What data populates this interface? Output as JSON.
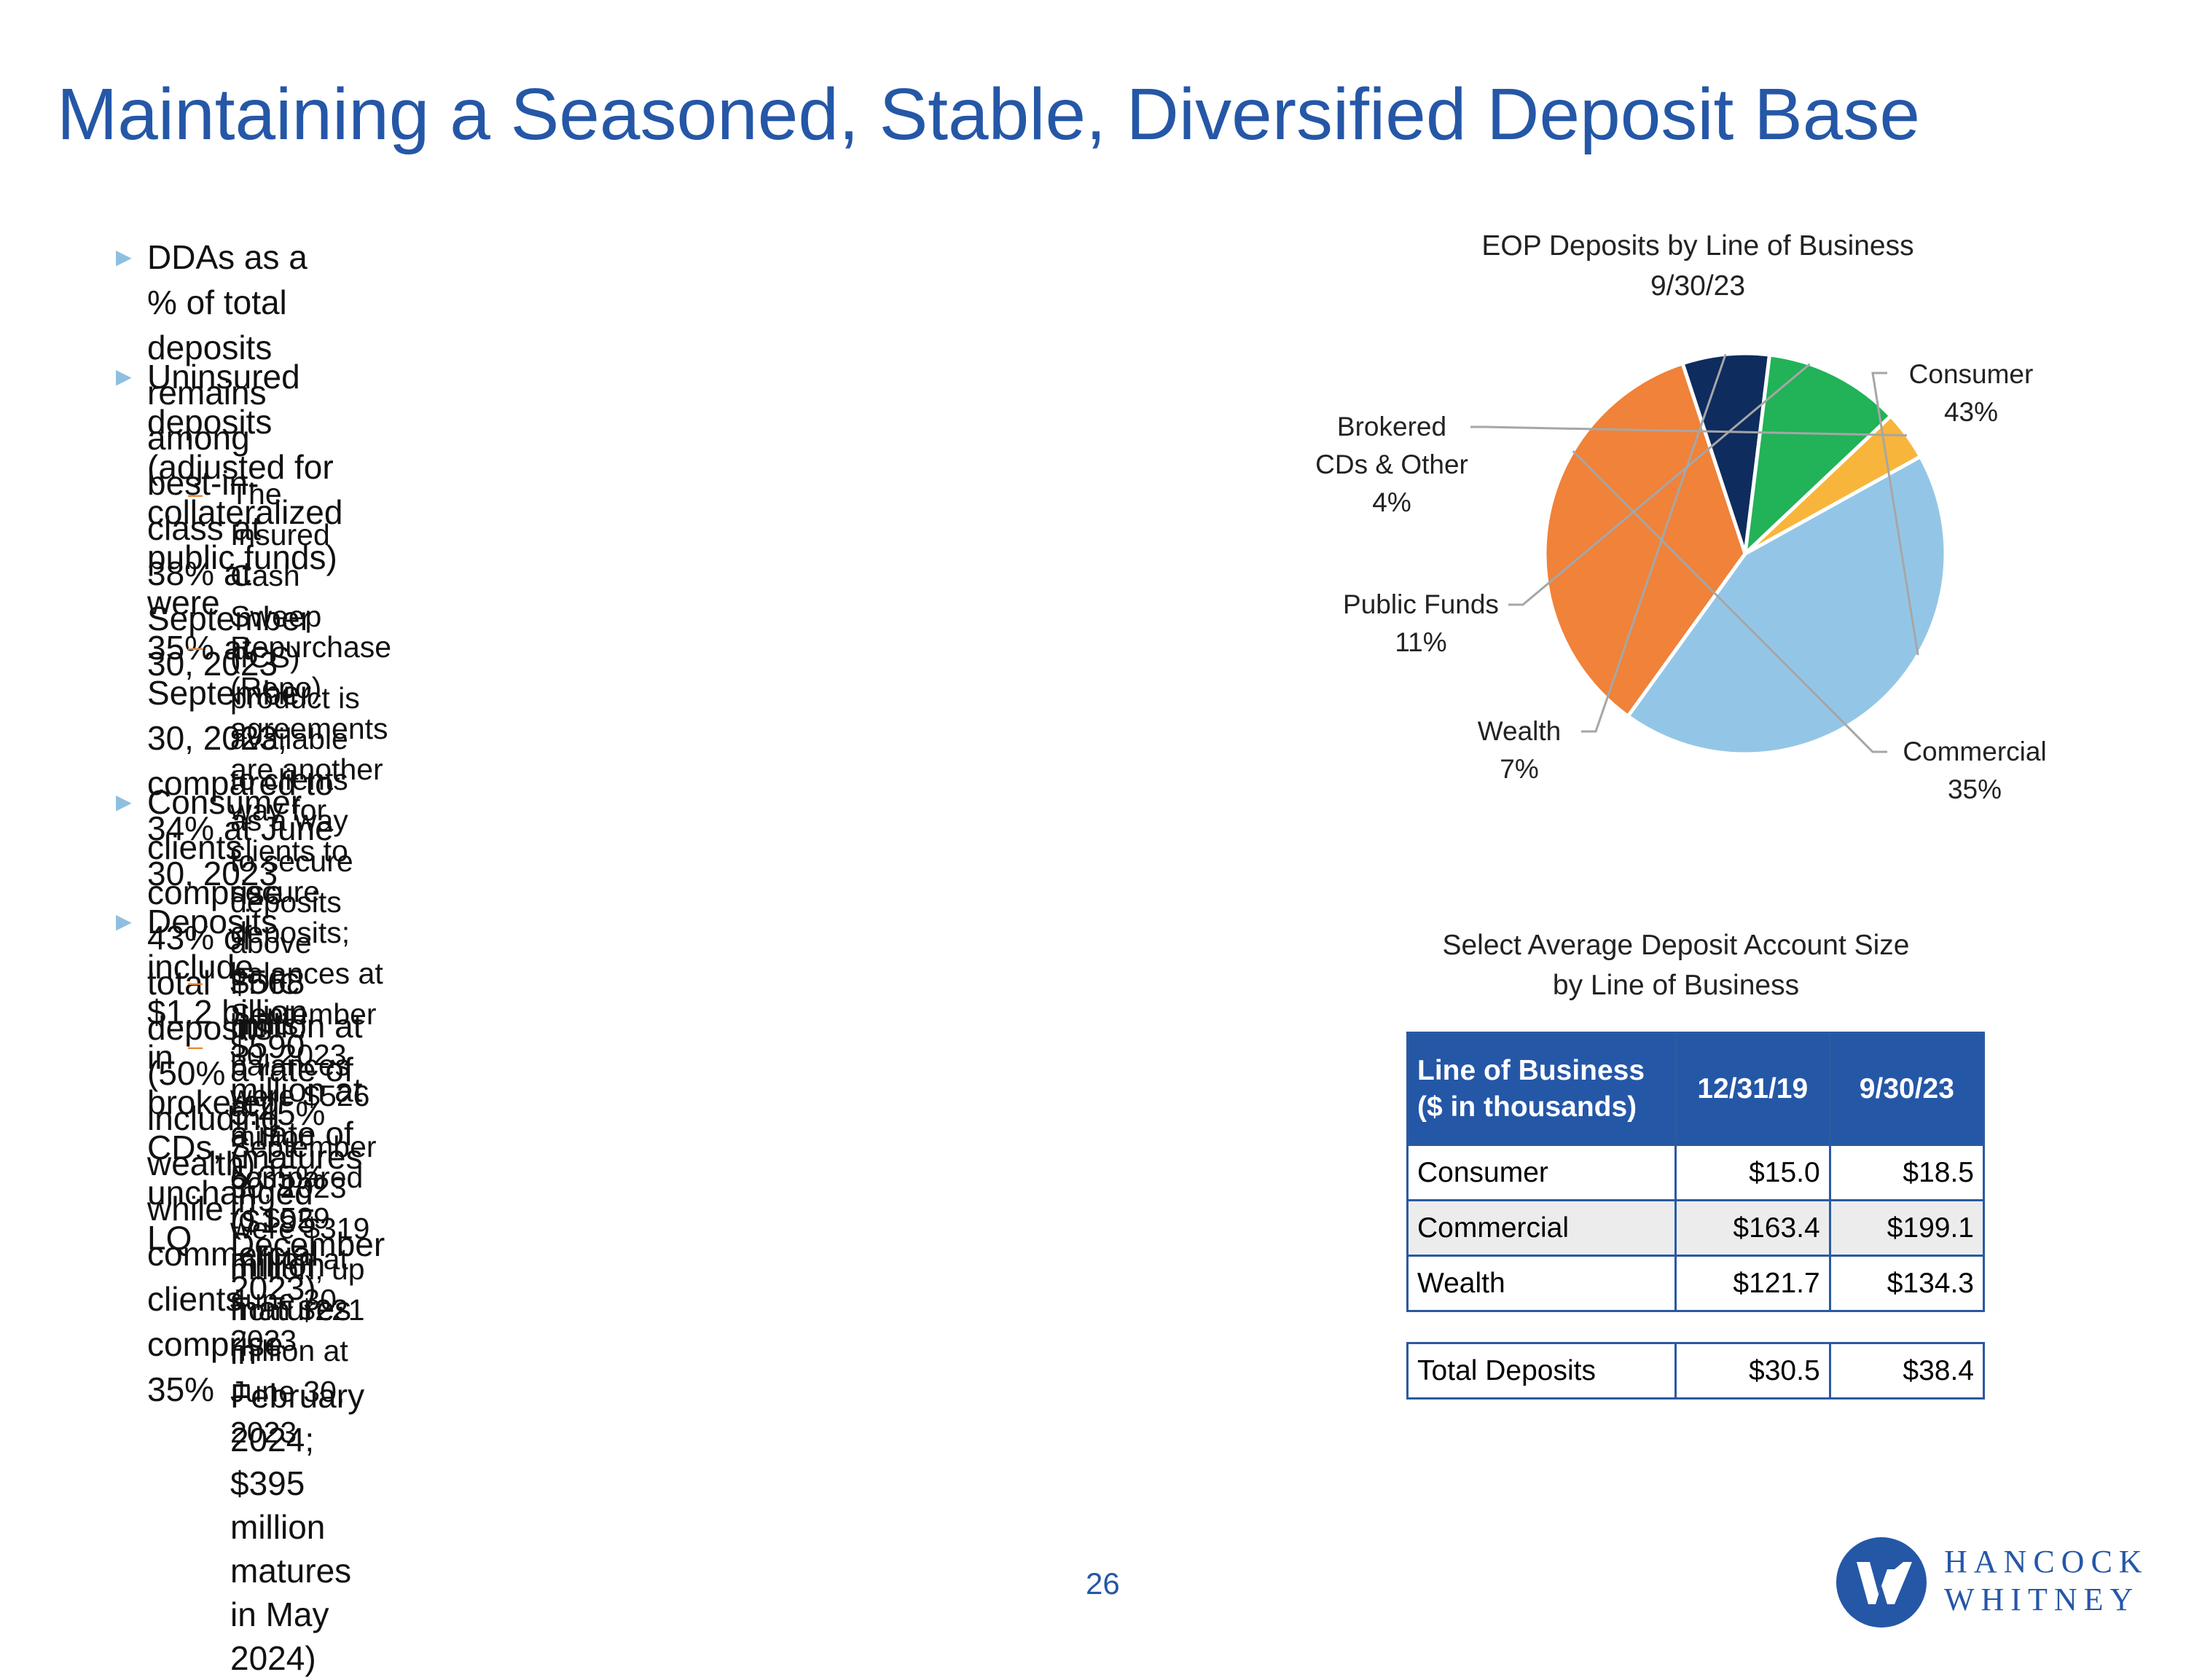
{
  "title": "Maintaining a Seasoned, Stable, Diversified Deposit Base",
  "bullets": {
    "b1": [
      "DDAs as a % of total deposits remains among best-in-class at 38% at",
      "September 30, 2023"
    ],
    "b2": [
      "Uninsured deposits (adjusted for collateralized public funds) were",
      "35% at September 30, 2023, compared to 34% at June 30, 2023"
    ],
    "b2_sub1": [
      "The Insured Cash Sweep (ICS) product is available to clients as a way",
      "to secure deposits above FDIC limits; balances at September 30, 2023",
      "were $319 million, up from $221 million at June 30, 2023"
    ],
    "b2_sub2": [
      "Repurchase (Repo) agreements are another way for clients to secure",
      "deposits; balances at September 30, 2023 were $526 million",
      "compared to $529 million at June 30, 2023"
    ],
    "b3": [
      "Consumer clients comprise 43% of total deposits (50% including",
      "wealth), while commercial clients comprise 35%"
    ],
    "b4": [
      "Deposits include $1.2 billion in brokered CDs, unchanged LQ"
    ],
    "b4_sub1": [
      "$568 million at a rate of 5.45% (matures in December 2023)"
    ],
    "b4_sub2": [
      "$590 million at a rate of 5.35% ($195 million matures in",
      "February 2024; $395 million matures in May 2024)"
    ],
    "arrow": "►",
    "dash": "–"
  },
  "chart_data": {
    "type": "pie",
    "title": [
      "EOP Deposits by Line of Business",
      "9/30/23"
    ],
    "slices": [
      {
        "label": [
          "Consumer"
        ],
        "pct_label": "43%",
        "value": 43,
        "color": "#93c6e6"
      },
      {
        "label": [
          "Commercial"
        ],
        "pct_label": "35%",
        "value": 35,
        "color": "#f0823a"
      },
      {
        "label": [
          "Wealth"
        ],
        "pct_label": "7%",
        "value": 7,
        "color": "#0e2c5e"
      },
      {
        "label": [
          "Public Funds"
        ],
        "pct_label": "11%",
        "value": 11,
        "color": "#22b258"
      },
      {
        "label": [
          "Brokered",
          "CDs & Other"
        ],
        "pct_label": "4%",
        "value": 4,
        "color": "#f8b53b"
      }
    ]
  },
  "table": {
    "title": [
      "Select Average Deposit Account Size",
      "by Line of Business"
    ],
    "header": {
      "col1": [
        "Line of Business",
        "($ in thousands)"
      ],
      "col2": "12/31/19",
      "col3": "9/30/23"
    },
    "rows": [
      {
        "name": "Consumer",
        "v1": "$15.0",
        "v2": "$18.5"
      },
      {
        "name": "Commercial",
        "v1": "$163.4",
        "v2": "$199.1"
      },
      {
        "name": "Wealth",
        "v1": "$121.7",
        "v2": "$134.3"
      }
    ],
    "total": {
      "name": "Total Deposits",
      "v1": "$30.5",
      "v2": "$38.4"
    }
  },
  "page_number": "26",
  "logo": {
    "line1": "HANCOCK",
    "line2": "WHITNEY",
    "mark": "W"
  }
}
